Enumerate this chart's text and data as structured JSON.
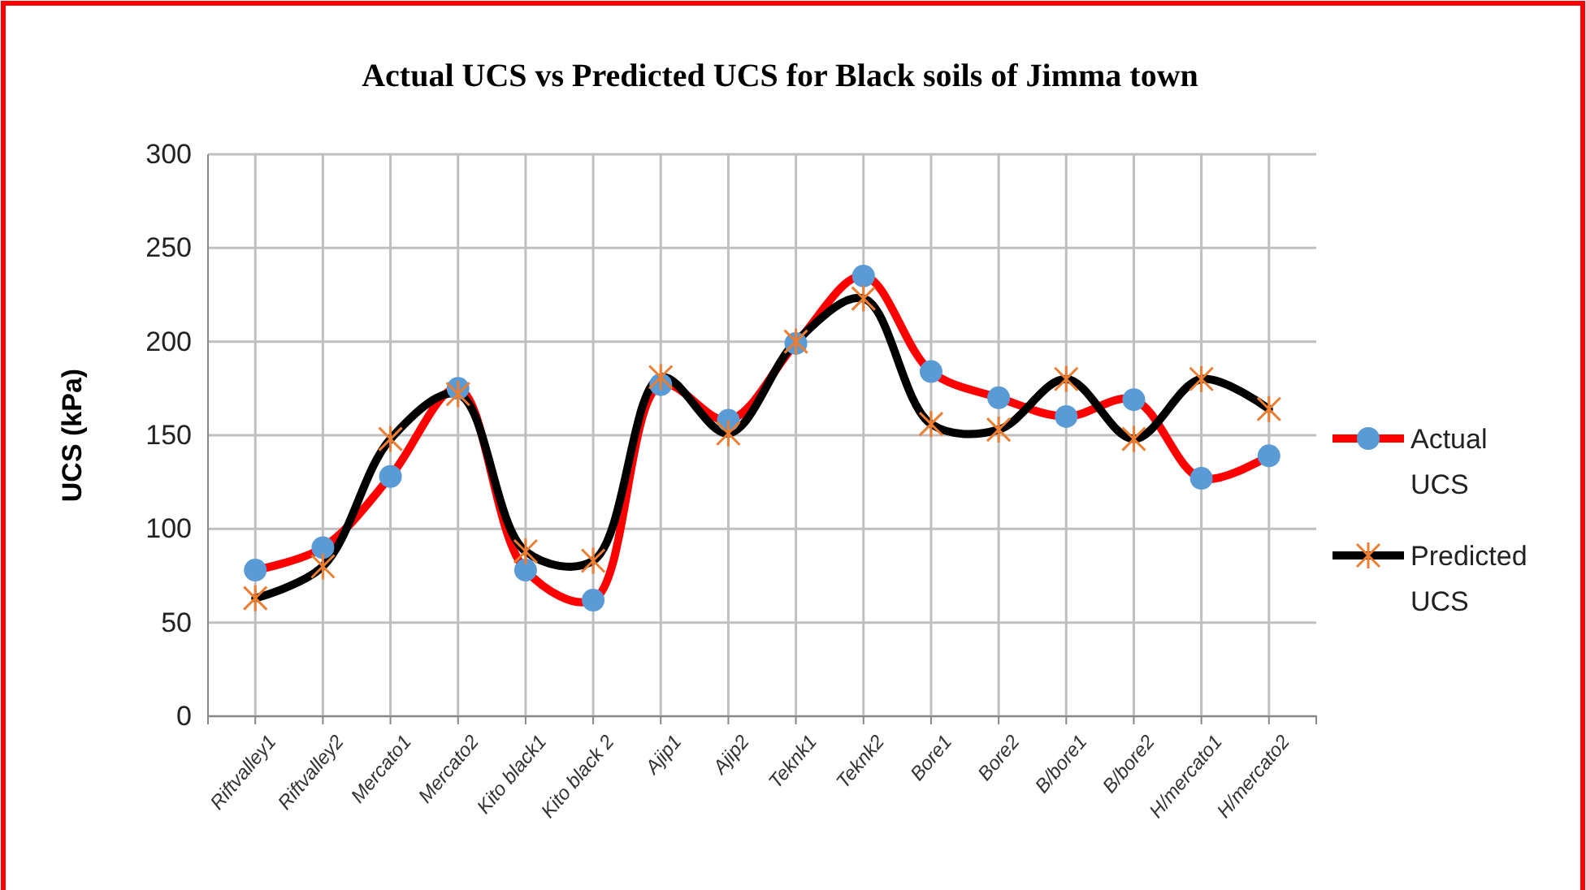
{
  "chart_data": {
    "type": "line",
    "title": "Actual UCS  vs Predicted  UCS  for Black soils of Jimma town",
    "ylabel": "UCS  (kPa)",
    "categories": [
      "Riftvalley1",
      "Riftvalley2",
      "Mercato1",
      "Mercato2",
      "Kito black1",
      "Kito black 2",
      "Ajip1",
      "Ajip2",
      "Teknk1",
      "Teknk2",
      "Bore1",
      "Bore2",
      "B/bore1",
      "B/bore2",
      "H/mercato1",
      "H/mercato2"
    ],
    "series": [
      {
        "name": "Actual UCS",
        "color": "#ff0000",
        "marker": "circle",
        "values": [
          78,
          90,
          128,
          175,
          78,
          62,
          177,
          158,
          199,
          235,
          184,
          170,
          160,
          169,
          127,
          139
        ]
      },
      {
        "name": "Predicted UCS",
        "color": "#000000",
        "marker": "cross",
        "values": [
          63,
          80,
          148,
          172,
          88,
          83,
          181,
          151,
          200,
          223,
          156,
          153,
          180,
          148,
          180,
          164
        ]
      }
    ],
    "ylim": [
      0,
      300
    ],
    "yticks": [
      0,
      50,
      100,
      150,
      200,
      250,
      300
    ],
    "grid": true,
    "legend": "right"
  }
}
